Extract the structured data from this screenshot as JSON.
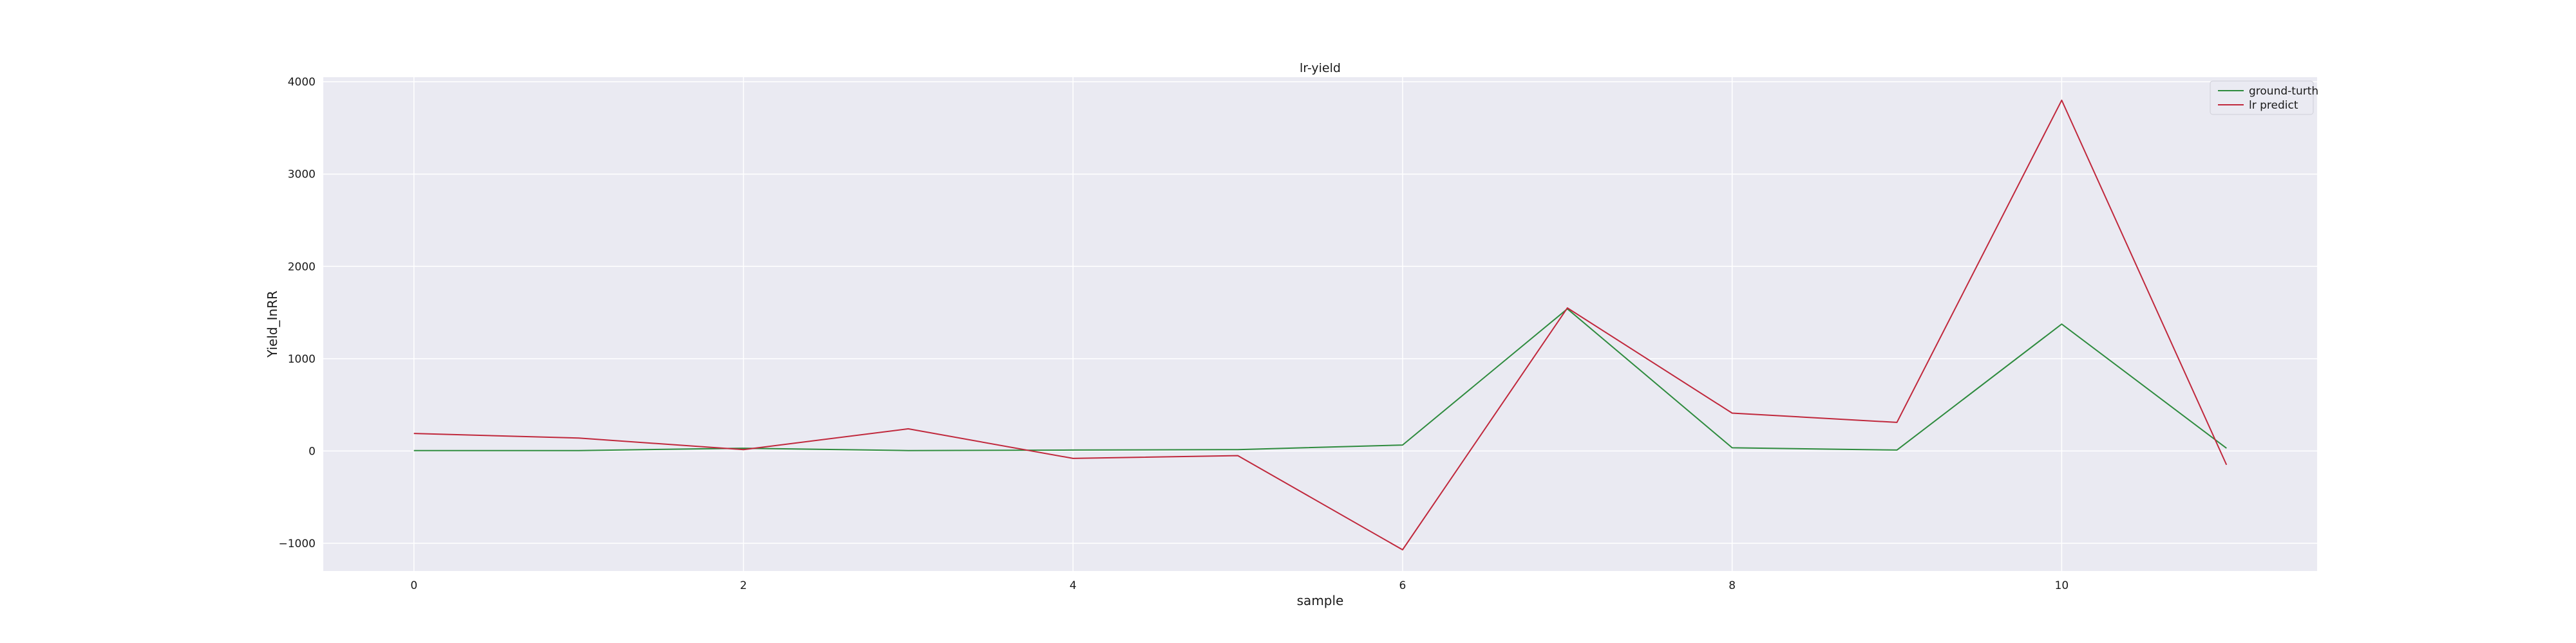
{
  "chart_data": {
    "type": "line",
    "title": "lr-yield",
    "xlabel": "sample",
    "ylabel": "Yield_InRR",
    "x": [
      0,
      1,
      2,
      3,
      4,
      5,
      6,
      7,
      8,
      9,
      10,
      11
    ],
    "xlim": [
      -0.55,
      11.55
    ],
    "ylim": [
      -1300,
      4050
    ],
    "xticks": [
      0,
      2,
      4,
      6,
      8,
      10
    ],
    "xtick_labels": [
      "0",
      "2",
      "4",
      "6",
      "8",
      "10"
    ],
    "yticks": [
      -1000,
      0,
      1000,
      2000,
      3000,
      4000
    ],
    "ytick_labels": [
      "−1000",
      "0",
      "1000",
      "2000",
      "3000",
      "4000"
    ],
    "grid": true,
    "legend_position": "top-right",
    "background": "#eaeaf2",
    "series": [
      {
        "name": "ground-turth",
        "color": "#2e8b3e",
        "values": [
          5,
          5,
          30,
          5,
          10,
          15,
          65,
          1540,
          35,
          10,
          1375,
          30
        ]
      },
      {
        "name": "lr predict",
        "color": "#c0283c",
        "values": [
          190,
          140,
          15,
          240,
          -80,
          -50,
          -1070,
          1550,
          410,
          310,
          3800,
          -150
        ]
      }
    ]
  }
}
